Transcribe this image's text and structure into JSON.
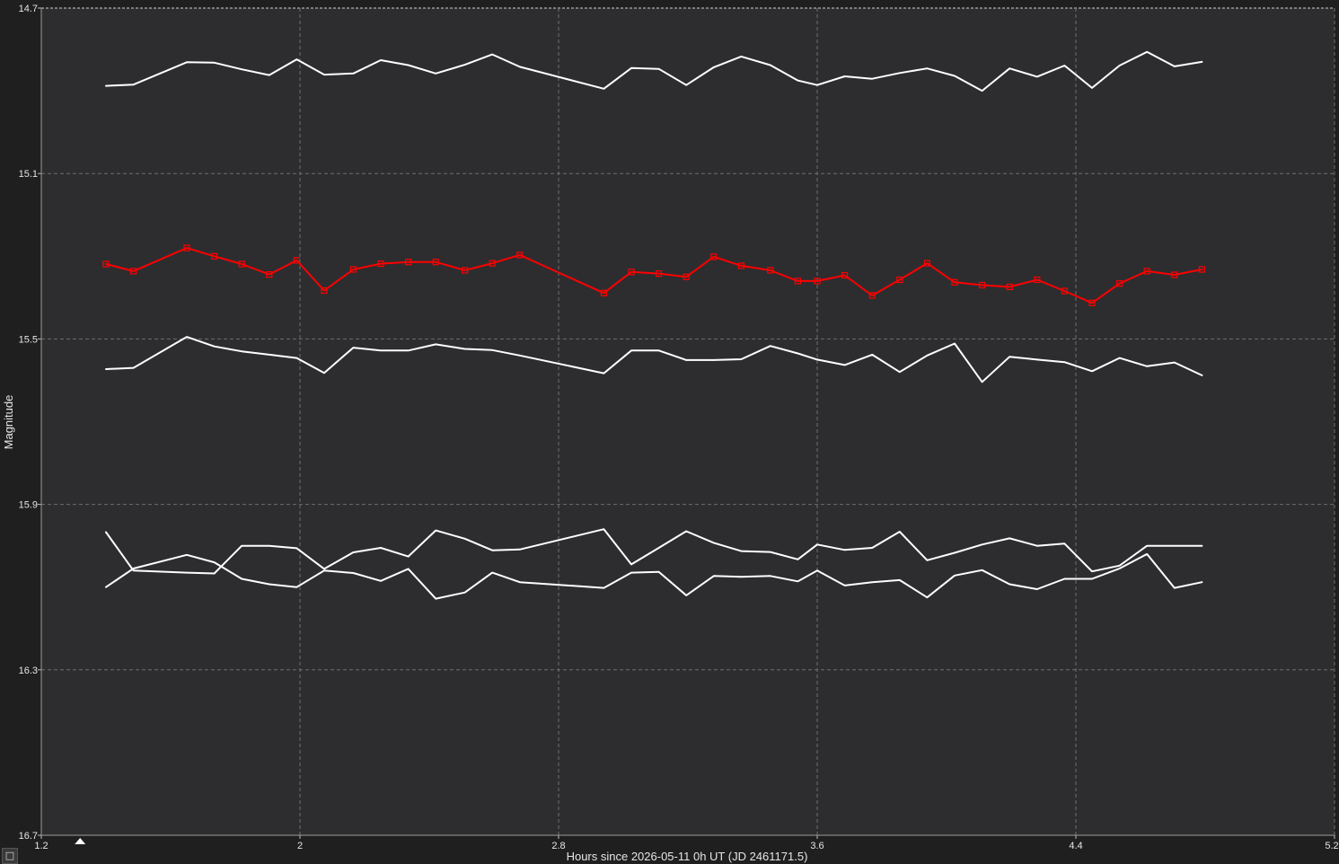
{
  "icons": {
    "corner_button": "square-icon",
    "time_marker": "triangle-up-icon"
  },
  "corner_button_glyph": "□",
  "chart_data": {
    "type": "line",
    "title": "",
    "xlabel": "Hours since 2026-05-11 0h UT (JD 2461171.5)",
    "ylabel": "Magnitude",
    "xlim": [
      1.2,
      5.2
    ],
    "ylim": [
      14.7,
      16.7
    ],
    "y_inverted": true,
    "x_ticks": [
      "1.2",
      "2",
      "2.8",
      "3.6",
      "4.4",
      "5.2"
    ],
    "y_ticks": [
      "14.7",
      "15.1",
      "15.5",
      "15.9",
      "16.3",
      "16.7"
    ],
    "grid": true,
    "colors": {
      "plot_background": "#2d2d2f",
      "outer_background": "#1f1f1f",
      "grid": "#6e6e6e",
      "target": "#ff0000",
      "comparison": "#ffffff",
      "text": "#e6e6e6"
    },
    "time_marker_x": 1.32,
    "x": [
      1.4,
      1.485,
      1.65,
      1.735,
      1.82,
      1.905,
      1.99,
      2.075,
      2.165,
      2.25,
      2.335,
      2.42,
      2.51,
      2.595,
      2.68,
      2.94,
      3.025,
      3.11,
      3.195,
      3.28,
      3.365,
      3.455,
      3.54,
      3.6,
      3.685,
      3.77,
      3.855,
      3.94,
      4.025,
      4.11,
      4.195,
      4.28,
      4.365,
      4.45,
      4.535,
      4.62,
      4.705,
      4.79
    ],
    "series": [
      {
        "role": "comparison",
        "color": "#ffffff",
        "markers": false,
        "values": [
          14.888,
          14.885,
          14.831,
          14.832,
          14.848,
          14.862,
          14.824,
          14.861,
          14.858,
          14.826,
          14.838,
          14.858,
          14.837,
          14.812,
          14.842,
          14.895,
          14.845,
          14.847,
          14.886,
          14.843,
          14.817,
          14.838,
          14.875,
          14.886,
          14.865,
          14.871,
          14.857,
          14.846,
          14.864,
          14.9,
          14.846,
          14.866,
          14.839,
          14.893,
          14.839,
          14.806,
          14.841,
          14.83
        ]
      },
      {
        "role": "target",
        "color": "#ff0000",
        "markers": true,
        "values": [
          15.319,
          15.336,
          15.28,
          15.3,
          15.319,
          15.344,
          15.31,
          15.383,
          15.332,
          15.318,
          15.314,
          15.314,
          15.334,
          15.317,
          15.297,
          15.389,
          15.338,
          15.342,
          15.35,
          15.301,
          15.323,
          15.334,
          15.36,
          15.36,
          15.346,
          15.395,
          15.357,
          15.317,
          15.363,
          15.37,
          15.374,
          15.357,
          15.384,
          15.413,
          15.366,
          15.336,
          15.345,
          15.332
        ]
      },
      {
        "role": "comparison",
        "color": "#ffffff",
        "markers": false,
        "values": [
          15.573,
          15.57,
          15.495,
          15.518,
          15.53,
          15.538,
          15.546,
          15.582,
          15.521,
          15.528,
          15.528,
          15.513,
          15.524,
          15.527,
          15.54,
          15.583,
          15.528,
          15.528,
          15.551,
          15.551,
          15.549,
          15.517,
          15.535,
          15.55,
          15.563,
          15.538,
          15.58,
          15.54,
          15.511,
          15.604,
          15.543,
          15.55,
          15.556,
          15.578,
          15.546,
          15.566,
          15.557,
          15.588
        ]
      },
      {
        "role": "comparison",
        "color": "#ffffff",
        "markers": false,
        "values": [
          15.967,
          16.06,
          16.065,
          16.067,
          16.0,
          16.0,
          16.006,
          16.056,
          16.016,
          16.005,
          16.026,
          15.963,
          15.983,
          16.011,
          16.009,
          15.96,
          16.045,
          16.005,
          15.965,
          15.993,
          16.013,
          16.015,
          16.033,
          15.997,
          16.01,
          16.005,
          15.966,
          16.035,
          16.017,
          15.997,
          15.982,
          16.0,
          15.995,
          16.062,
          16.048,
          16.0,
          16.0,
          16.0
        ]
      },
      {
        "role": "comparison",
        "color": "#ffffff",
        "markers": false,
        "values": [
          16.1,
          16.055,
          16.022,
          16.04,
          16.08,
          16.093,
          16.1,
          16.06,
          16.066,
          16.085,
          16.056,
          16.128,
          16.113,
          16.065,
          16.088,
          16.102,
          16.065,
          16.063,
          16.12,
          16.073,
          16.075,
          16.073,
          16.086,
          16.06,
          16.096,
          16.088,
          16.083,
          16.125,
          16.072,
          16.059,
          16.093,
          16.105,
          16.08,
          16.08,
          16.055,
          16.02,
          16.102,
          16.088
        ]
      }
    ]
  }
}
